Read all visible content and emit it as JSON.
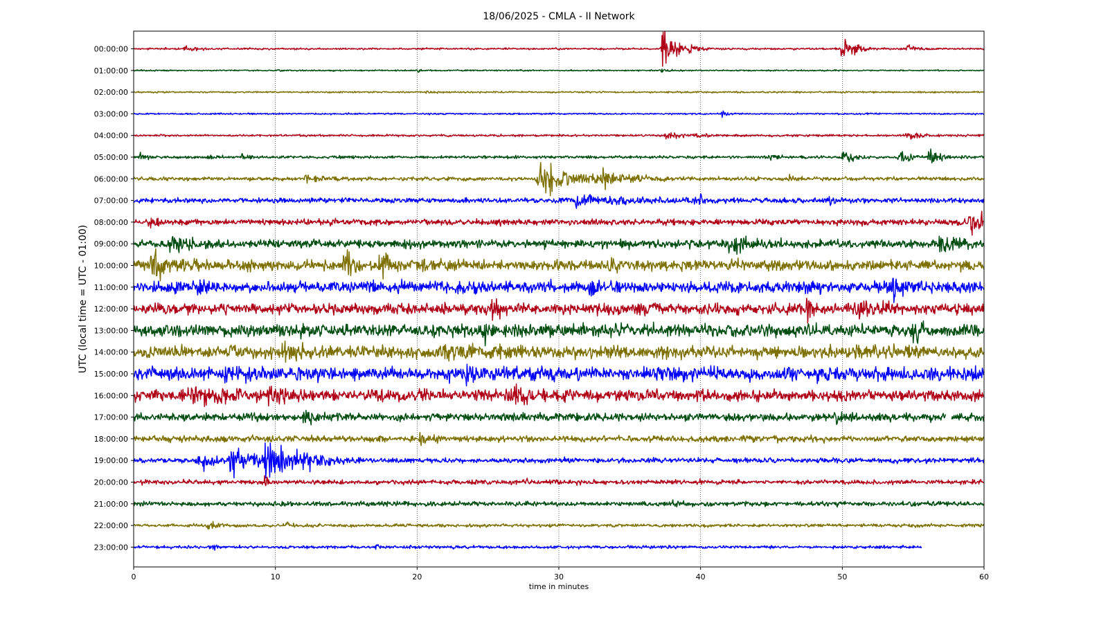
{
  "chart_data": {
    "type": "line",
    "title": "18/06/2025 - CMLA - II Network",
    "xlabel": "time in minutes",
    "ylabel": "UTC (local time = UTC - 01:00)",
    "xlim": [
      0,
      60
    ],
    "xticks": [
      0,
      10,
      20,
      30,
      40,
      50,
      60
    ],
    "grid": "vertical dotted",
    "colors": [
      "#b00018",
      "#004d12",
      "#7d7000",
      "#0000ff"
    ],
    "series": [
      {
        "name": "00:00:00",
        "duration": 60,
        "noise": 0.08,
        "events": [
          [
            3.5,
            0.25,
            0.8
          ],
          [
            37.3,
            2.6,
            0.7
          ],
          [
            39.2,
            0.45,
            0.4
          ],
          [
            49.9,
            1.6,
            0.6
          ],
          [
            50.8,
            0.35,
            0.4
          ],
          [
            54.6,
            0.6,
            0.4
          ]
        ]
      },
      {
        "name": "01:00:00",
        "duration": 60,
        "noise": 0.06,
        "events": [
          [
            20.1,
            0.2,
            0.2
          ],
          [
            37.2,
            0.2,
            0.3
          ]
        ]
      },
      {
        "name": "02:00:00",
        "duration": 60,
        "noise": 0.07,
        "events": [
          [
            20.6,
            0.15,
            0.3
          ]
        ]
      },
      {
        "name": "03:00:00",
        "duration": 60,
        "noise": 0.07,
        "events": [
          [
            41.5,
            0.4,
            0.3
          ]
        ]
      },
      {
        "name": "04:00:00",
        "duration": 60,
        "noise": 0.09,
        "events": [
          [
            37.5,
            0.3,
            1.6
          ],
          [
            54.5,
            0.3,
            1.0
          ]
        ]
      },
      {
        "name": "05:00:00",
        "duration": 60,
        "noise": 0.12,
        "events": [
          [
            0.4,
            0.35,
            0.3
          ],
          [
            5.2,
            0.3,
            0.4
          ],
          [
            7.6,
            0.5,
            0.3
          ],
          [
            45,
            0.3,
            0.4
          ],
          [
            50,
            0.65,
            0.6
          ],
          [
            54,
            0.8,
            0.8
          ],
          [
            56,
            0.8,
            0.6
          ]
        ]
      },
      {
        "name": "06:00:00",
        "duration": 60,
        "noise": 0.16,
        "events": [
          [
            12,
            0.4,
            1.0
          ],
          [
            28.5,
            1.6,
            2.2
          ],
          [
            33,
            0.8,
            1.4
          ],
          [
            46.2,
            0.6,
            0.2
          ]
        ]
      },
      {
        "name": "07:00:00",
        "duration": 60,
        "noise": 0.22,
        "events": [
          [
            31,
            0.5,
            3.0
          ],
          [
            39.7,
            0.6,
            0.3
          ],
          [
            49,
            0.5,
            0.2
          ]
        ]
      },
      {
        "name": "08:00:00",
        "duration": 60,
        "noise": 0.26,
        "events": [
          [
            1.1,
            0.5,
            0.4
          ],
          [
            14,
            0.45,
            0.3
          ],
          [
            59,
            1.5,
            1.2
          ]
        ]
      },
      {
        "name": "09:00:00",
        "duration": 60,
        "noise": 0.36,
        "events": [
          [
            2.5,
            0.7,
            1.2
          ],
          [
            42,
            0.7,
            1.5
          ],
          [
            56.8,
            0.7,
            1.0
          ]
        ]
      },
      {
        "name": "10:00:00",
        "duration": 60,
        "noise": 0.45,
        "events": [
          [
            1.2,
            1.2,
            1.2
          ],
          [
            14.8,
            1.6,
            0.5
          ],
          [
            17.3,
            0.9,
            1.1
          ],
          [
            33.5,
            0.5,
            0.5
          ]
        ]
      },
      {
        "name": "11:00:00",
        "duration": 60,
        "noise": 0.5,
        "events": [
          [
            4.5,
            0.5,
            0.3
          ],
          [
            32.2,
            0.6,
            0.5
          ],
          [
            53.5,
            1.1,
            0.6
          ]
        ]
      },
      {
        "name": "12:00:00",
        "duration": 60,
        "noise": 0.5,
        "events": [
          [
            25.3,
            1.0,
            0.4
          ],
          [
            47.5,
            0.9,
            0.4
          ],
          [
            51,
            0.8,
            0.7
          ],
          [
            35.5,
            0.6,
            0.4
          ]
        ]
      },
      {
        "name": "13:00:00",
        "duration": 60,
        "noise": 0.55,
        "events": [
          [
            24.8,
            0.9,
            0.4
          ],
          [
            55,
            0.9,
            0.4
          ]
        ]
      },
      {
        "name": "14:00:00",
        "duration": 60,
        "noise": 0.55,
        "events": [
          [
            10.5,
            0.7,
            1.0
          ],
          [
            22,
            0.7,
            0.8
          ]
        ]
      },
      {
        "name": "15:00:00",
        "duration": 60,
        "noise": 0.58,
        "events": [
          [
            23.5,
            0.8,
            0.4
          ],
          [
            6,
            0.6,
            1.0
          ]
        ]
      },
      {
        "name": "16:00:00",
        "duration": 60,
        "noise": 0.5,
        "events": [
          [
            4,
            0.6,
            1.5
          ],
          [
            26.5,
            0.9,
            1.0
          ],
          [
            9.5,
            0.7,
            0.8
          ]
        ]
      },
      {
        "name": "17:00:00",
        "duration": 60,
        "noise": 0.34,
        "events": [
          [
            12,
            0.5,
            0.5
          ],
          [
            49.5,
            0.5,
            0.4
          ]
        ],
        "gap": [
          57.3,
          57.7
        ]
      },
      {
        "name": "18:00:00",
        "duration": 60,
        "noise": 0.28,
        "events": [
          [
            20.2,
            0.4,
            0.5
          ]
        ]
      },
      {
        "name": "19:00:00",
        "duration": 60,
        "noise": 0.22,
        "events": [
          [
            4.5,
            0.8,
            1.6
          ],
          [
            6.8,
            1.6,
            1.4
          ],
          [
            9.3,
            2.1,
            1.4
          ],
          [
            11.5,
            0.7,
            1.2
          ]
        ]
      },
      {
        "name": "20:00:00",
        "duration": 60,
        "noise": 0.2,
        "events": [
          [
            9.2,
            0.6,
            0.2
          ],
          [
            27.5,
            0.4,
            0.3
          ]
        ]
      },
      {
        "name": "21:00:00",
        "duration": 60,
        "noise": 0.2,
        "events": [
          [
            38,
            0.3,
            0.4
          ]
        ]
      },
      {
        "name": "22:00:00",
        "duration": 60,
        "noise": 0.14,
        "events": [
          [
            5.3,
            0.5,
            0.3
          ],
          [
            10.8,
            0.3,
            0.2
          ]
        ]
      },
      {
        "name": "23:00:00",
        "duration": 55.6,
        "noise": 0.13,
        "events": [
          [
            5.6,
            0.3,
            0.3
          ],
          [
            17.1,
            0.3,
            0.2
          ]
        ]
      }
    ]
  }
}
